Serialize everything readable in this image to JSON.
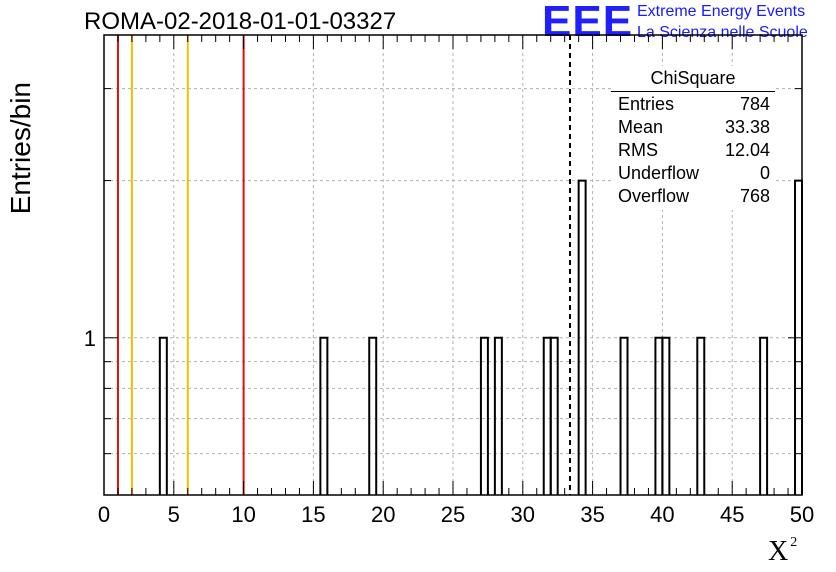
{
  "title": "ROMA-02-2018-01-01-03327",
  "logo": {
    "text": "EEE",
    "line1": "Extreme Energy Events",
    "line2": "La Scienza nelle Scuole"
  },
  "colors": {
    "histogram": "#000000",
    "red_lines": "#dd1111",
    "yellow_lines": "#f0c000",
    "logo": "#2020ff"
  },
  "chart_data": {
    "type": "bar",
    "xlabel": "X",
    "xlabel_sup": "2",
    "ylabel": "Entries/bin",
    "xlim": [
      0,
      50
    ],
    "ylim": [
      0.5,
      3.8
    ],
    "y_scale": "log",
    "grid": true,
    "x_ticks": [
      "0",
      "5",
      "10",
      "15",
      "20",
      "25",
      "30",
      "35",
      "40",
      "45",
      "50"
    ],
    "y_ticks": [
      "1"
    ],
    "bin_width": 0.5,
    "bins": [
      {
        "x": 4.0,
        "count": 1
      },
      {
        "x": 15.5,
        "count": 1
      },
      {
        "x": 19.0,
        "count": 1
      },
      {
        "x": 27.0,
        "count": 1
      },
      {
        "x": 28.0,
        "count": 1
      },
      {
        "x": 31.5,
        "count": 1
      },
      {
        "x": 32.0,
        "count": 1
      },
      {
        "x": 34.0,
        "count": 2
      },
      {
        "x": 37.0,
        "count": 1
      },
      {
        "x": 39.5,
        "count": 1
      },
      {
        "x": 40.0,
        "count": 1
      },
      {
        "x": 42.5,
        "count": 1
      },
      {
        "x": 47.0,
        "count": 1
      },
      {
        "x": 49.5,
        "count": 2
      }
    ],
    "vertical_lines": [
      {
        "x": 1,
        "color": "red",
        "style": "solid"
      },
      {
        "x": 2,
        "color": "yellow",
        "style": "solid"
      },
      {
        "x": 6,
        "color": "yellow",
        "style": "solid"
      },
      {
        "x": 10,
        "color": "red",
        "style": "solid"
      },
      {
        "x": 33.38,
        "color": "black",
        "style": "dashed"
      }
    ],
    "legend_position": "top-right",
    "stats": {
      "title": "ChiSquare",
      "rows": [
        {
          "label": "Entries",
          "value": "784"
        },
        {
          "label": "Mean",
          "value": "33.38"
        },
        {
          "label": "RMS",
          "value": "12.04"
        },
        {
          "label": "Underflow",
          "value": "0"
        },
        {
          "label": "Overflow",
          "value": "768"
        }
      ]
    }
  }
}
